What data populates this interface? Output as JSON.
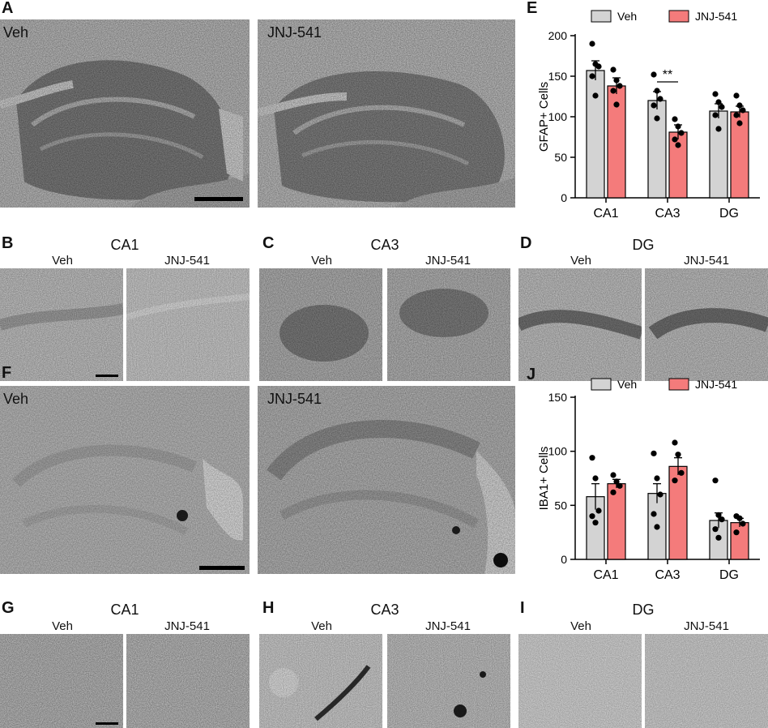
{
  "labels": {
    "A": "A",
    "B": "B",
    "C": "C",
    "D": "D",
    "E": "E",
    "F": "F",
    "G": "G",
    "H": "H",
    "I": "I",
    "J": "J"
  },
  "conditions": {
    "veh": "Veh",
    "jnj": "JNJ-541"
  },
  "regions": {
    "ca1": "CA1",
    "ca3": "CA3",
    "dg": "DG"
  },
  "colors": {
    "veh": "#d3d3d3",
    "jnj": "#f47b7b",
    "axis": "#000000"
  },
  "chart_data": [
    {
      "type": "bar",
      "panel": "E",
      "categories": [
        "CA1",
        "CA3",
        "DG"
      ],
      "ylabel": "GFAP+ Cells",
      "ylim": [
        0,
        200
      ],
      "yticks": [
        0,
        50,
        100,
        150,
        200
      ],
      "legend": [
        "Veh",
        "JNJ-541"
      ],
      "legend_position": "top",
      "series": [
        {
          "name": "Veh",
          "values": [
            157,
            120,
            107
          ],
          "sem": [
            12,
            11,
            9
          ],
          "points": [
            [
              190,
              165,
              162,
              150,
              126
            ],
            [
              152,
              132,
              122,
              114,
              98
            ],
            [
              128,
              118,
              112,
              102,
              85
            ]
          ]
        },
        {
          "name": "JNJ-541",
          "values": [
            138,
            81,
            106
          ],
          "sem": [
            10,
            9,
            7
          ],
          "points": [
            [
              158,
              145,
              138,
              132,
              115
            ],
            [
              97,
              88,
              80,
              72,
              65
            ],
            [
              126,
              114,
              108,
              102,
              92
            ]
          ]
        }
      ],
      "annotation": "**"
    },
    {
      "type": "bar",
      "panel": "J",
      "categories": [
        "CA1",
        "CA3",
        "DG"
      ],
      "ylabel": "IBA1+ Cells",
      "ylim": [
        0,
        150
      ],
      "yticks": [
        0,
        50,
        100,
        150
      ],
      "legend": [
        "Veh",
        "JNJ-541"
      ],
      "legend_position": "top",
      "series": [
        {
          "name": "Veh",
          "values": [
            58,
            61,
            36
          ],
          "sem": [
            12,
            9,
            7
          ],
          "points": [
            [
              94,
              75,
              45,
              40,
              34
            ],
            [
              98,
              75,
              60,
              42,
              30
            ],
            [
              73,
              41,
              37,
              28,
              20
            ]
          ]
        },
        {
          "name": "JNJ-541",
          "values": [
            70,
            86,
            34
          ],
          "sem": [
            4,
            8,
            4
          ],
          "points": [
            [
              78,
              72,
              68,
              62
            ],
            [
              108,
              97,
              80,
              73
            ],
            [
              40,
              38,
              33,
              25
            ]
          ]
        }
      ]
    }
  ]
}
